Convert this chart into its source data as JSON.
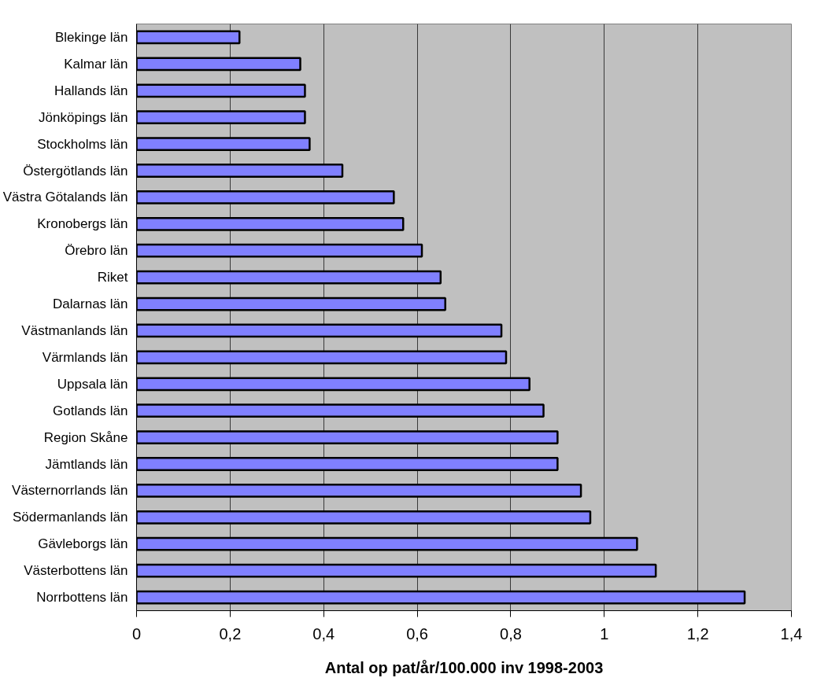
{
  "chart_data": {
    "type": "bar",
    "orientation": "horizontal",
    "xlabel": "Antal op pat/år/100.000 inv 1998-2003",
    "categories": [
      "Blekinge län",
      "Kalmar län",
      "Hallands län",
      "Jönköpings län",
      "Stockholms län",
      "Östergötlands län",
      "Västra Götalands län",
      "Kronobergs län",
      "Örebro län",
      "Riket",
      "Dalarnas län",
      "Västmanlands län",
      "Värmlands län",
      "Uppsala län",
      "Gotlands län",
      "Region Skåne",
      "Jämtlands län",
      "Västernorrlands län",
      "Södermanlands län",
      "Gävleborgs län",
      "Västerbottens län",
      "Norrbottens län"
    ],
    "values": [
      0.22,
      0.35,
      0.36,
      0.36,
      0.37,
      0.44,
      0.55,
      0.57,
      0.61,
      0.65,
      0.66,
      0.78,
      0.79,
      0.84,
      0.87,
      0.9,
      0.9,
      0.95,
      0.97,
      1.07,
      1.11,
      1.3
    ],
    "color": "#8080ff",
    "xlim": [
      0,
      1.4
    ],
    "xticks": [
      0,
      {
        "value": 0.2,
        "label": "0,2"
      },
      {
        "value": 0.4,
        "label": "0,4"
      },
      {
        "value": 0.6,
        "label": "0,6"
      },
      {
        "value": 0.8,
        "label": "0,8"
      },
      1,
      {
        "value": 1.2,
        "label": "1,2"
      },
      {
        "value": 1.4,
        "label": "1,4"
      }
    ],
    "grid": "x"
  }
}
